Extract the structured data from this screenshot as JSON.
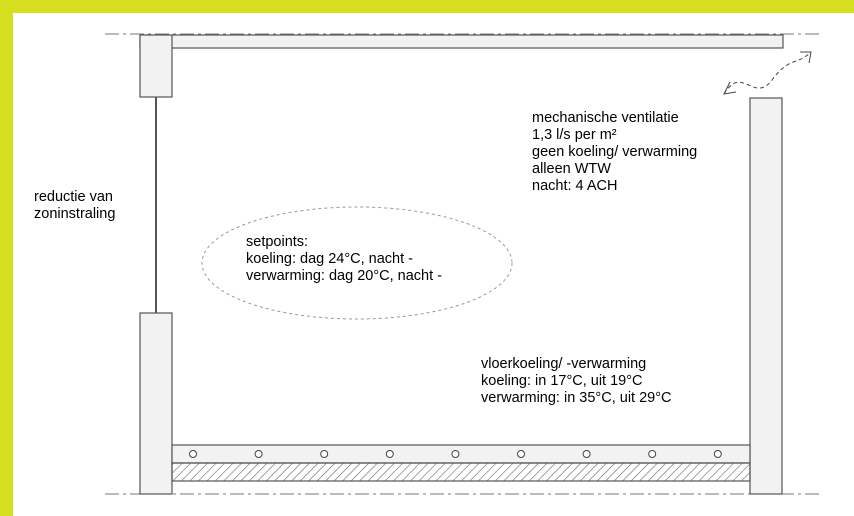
{
  "colors": {
    "border": "#d6df1f",
    "background": "#ffffff",
    "line": "#555555",
    "dashed": "#999999"
  },
  "labels": {
    "left": [
      "reductie van",
      "zoninstraling"
    ],
    "ventilation": [
      "mechanische ventilatie",
      "1,3 l/s per m²",
      "geen koeling/ verwarming",
      "alleen WTW",
      "nacht: 4 ACH"
    ],
    "setpoints": [
      "setpoints:",
      "koeling: dag 24°C, nacht -",
      "verwarming: dag 20°C, nacht -"
    ],
    "floor": [
      "vloerkoeling/ -verwarming",
      "koeling: in 17°C, uit 19°C",
      "verwarming: in 35°C, uit 29°C"
    ]
  }
}
